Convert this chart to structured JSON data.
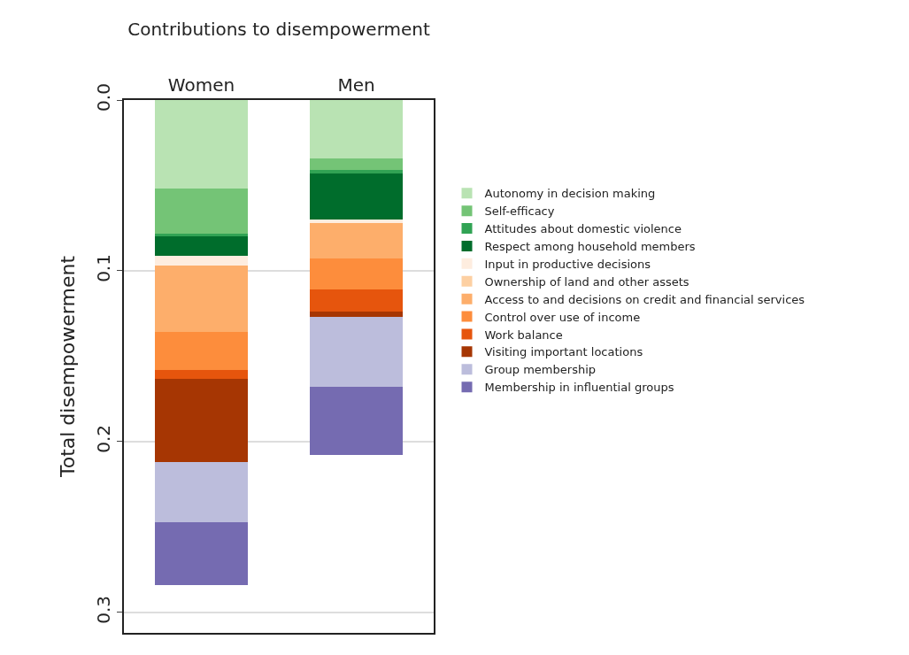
{
  "chart_data": {
    "type": "bar",
    "stacked": true,
    "title": "Contributions to disempowerment",
    "ylabel": "Total disempowerment",
    "categories": [
      "Women",
      "Men"
    ],
    "series": [
      {
        "name": "Autonomy in decision making",
        "color": "#b9e3b3",
        "values": [
          0.052,
          0.034
        ]
      },
      {
        "name": "Self-efficacy",
        "color": "#74c476",
        "values": [
          0.026,
          0.007
        ]
      },
      {
        "name": "Attitudes about domestic violence",
        "color": "#31a354",
        "values": [
          0.002,
          0.002
        ]
      },
      {
        "name": "Respect among household members",
        "color": "#006d2c",
        "values": [
          0.011,
          0.027
        ]
      },
      {
        "name": "Input in productive decisions",
        "color": "#feeddf",
        "values": [
          0.006,
          0.002
        ]
      },
      {
        "name": "Ownership of land and other assets",
        "color": "#fdd0a2",
        "values": [
          0,
          0
        ]
      },
      {
        "name": "Access to and decisions on credit and financial services",
        "color": "#fdae6b",
        "values": [
          0.039,
          0.021
        ]
      },
      {
        "name": "Control over use of income",
        "color": "#fd8d3c",
        "values": [
          0.022,
          0.018
        ]
      },
      {
        "name": "Work balance",
        "color": "#e6550d",
        "values": [
          0.005,
          0.013
        ]
      },
      {
        "name": "Visiting important locations",
        "color": "#a63603",
        "values": [
          0.049,
          0.003
        ]
      },
      {
        "name": "Group membership",
        "color": "#bcbddc",
        "values": [
          0.035,
          0.041
        ]
      },
      {
        "name": "Membership in influential groups",
        "color": "#756bb1",
        "values": [
          0.037,
          0.04
        ]
      }
    ],
    "ylim": [
      0.312,
      0
    ],
    "yticks": [
      {
        "value": 0,
        "label": "0.0"
      },
      0.1,
      0.2,
      0.3
    ],
    "grid": "y",
    "legend": "right"
  }
}
